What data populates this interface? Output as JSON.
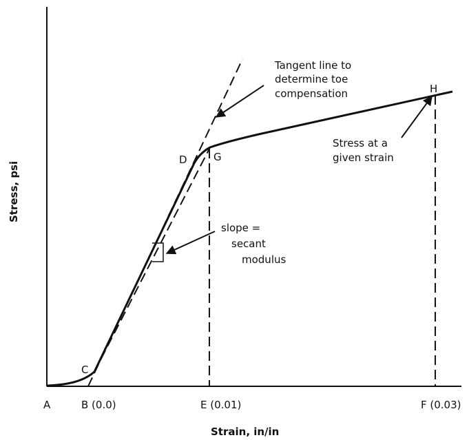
{
  "axes": {
    "x_title": "Strain, in/in",
    "y_title": "Stress, psi"
  },
  "x_markers": {
    "A": "A",
    "B": "B (0.0)",
    "E": "E (0.01)",
    "F": "F (0.03)"
  },
  "points": {
    "C": "C",
    "D": "D",
    "G": "G",
    "H": "H"
  },
  "annotations": {
    "tangent": [
      "Tangent line to",
      "determine toe",
      "compensation"
    ],
    "stress_at_strain": [
      "Stress at a",
      "given strain"
    ],
    "slope": [
      "slope =",
      "secant",
      "modulus"
    ]
  },
  "colors": {
    "ink": "#111111",
    "background": "#ffffff"
  }
}
